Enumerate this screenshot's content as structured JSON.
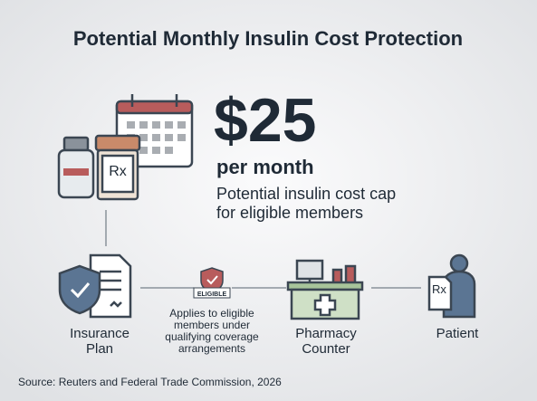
{
  "header": {
    "title": "Potential Monthly Insulin Cost Protection"
  },
  "highlight": {
    "amount": "$25",
    "period": "per month",
    "description": [
      "Potential insulin cost cap",
      "for eligible members"
    ]
  },
  "icons": {
    "bottle_label": "Rx",
    "document_label": "Rx"
  },
  "nodes": [
    {
      "label": [
        "Insurance",
        "Plan"
      ]
    },
    {
      "badge": "ELIGIBLE",
      "label": [
        "Applies to eligible",
        "members under",
        "qualifying coverage",
        "arrangements"
      ]
    },
    {
      "label": [
        "Pharmacy",
        "Counter"
      ]
    },
    {
      "label": [
        "Patient"
      ]
    }
  ],
  "footer": {
    "source": "Source: Reuters and Federal Trade Commission, 2026"
  }
}
